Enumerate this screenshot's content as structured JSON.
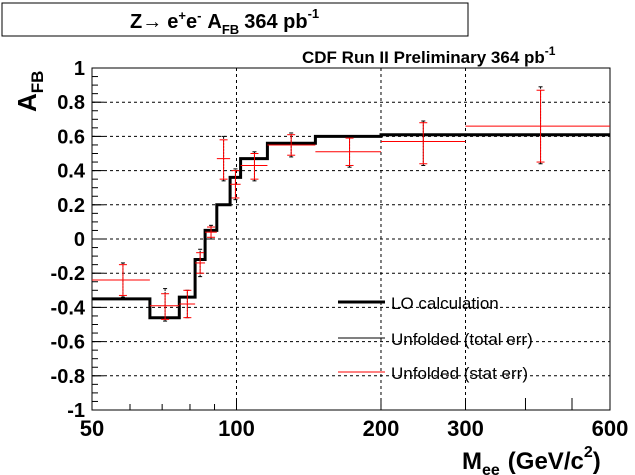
{
  "chart_data": {
    "type": "line",
    "title_box": {
      "text_main": "Z",
      "arrow": "→",
      "electron": "e",
      "plus": "+",
      "minus": "-",
      "afb": "A",
      "fb_sub": "FB",
      "lumi": "364 pb",
      "lumi_exp": "-1"
    },
    "subtitle": {
      "text": "CDF Run II Preliminary 364 pb",
      "exp": "-1"
    },
    "ylabel": {
      "main": "A",
      "sub": "FB"
    },
    "xlabel": {
      "main": "M",
      "sub": "ee",
      "units": "(GeV/c",
      "exp": "2",
      "close": ")"
    },
    "xscale": "log",
    "xlim": [
      50,
      600
    ],
    "ylim": [
      -1,
      1
    ],
    "xticks": [
      {
        "value": 50,
        "label": "50"
      },
      {
        "value": 100,
        "label": "100"
      },
      {
        "value": 200,
        "label": "200"
      },
      {
        "value": 300,
        "label": "300"
      },
      {
        "value": 600,
        "label": "600"
      }
    ],
    "yticks": [
      {
        "value": 1,
        "label": "1"
      },
      {
        "value": 0.8,
        "label": "0.8"
      },
      {
        "value": 0.6,
        "label": "0.6"
      },
      {
        "value": 0.4,
        "label": "0.4"
      },
      {
        "value": 0.2,
        "label": "0.2"
      },
      {
        "value": 0,
        "label": "0"
      },
      {
        "value": -0.2,
        "label": "-0.2"
      },
      {
        "value": -0.4,
        "label": "-0.4"
      },
      {
        "value": -0.6,
        "label": "-0.6"
      },
      {
        "value": -0.8,
        "label": "-0.8"
      },
      {
        "value": -1,
        "label": "-1"
      }
    ],
    "grid": true,
    "lo_calculation": {
      "name": "LO calculation",
      "bins": [
        {
          "lo": 50,
          "hi": 66,
          "y": -0.35
        },
        {
          "lo": 66,
          "hi": 76,
          "y": -0.46
        },
        {
          "lo": 76,
          "hi": 82,
          "y": -0.34
        },
        {
          "lo": 82,
          "hi": 86,
          "y": -0.12
        },
        {
          "lo": 86,
          "hi": 91,
          "y": 0.05
        },
        {
          "lo": 91,
          "hi": 97,
          "y": 0.2
        },
        {
          "lo": 97,
          "hi": 102,
          "y": 0.36
        },
        {
          "lo": 102,
          "hi": 116,
          "y": 0.47
        },
        {
          "lo": 116,
          "hi": 146,
          "y": 0.56
        },
        {
          "lo": 146,
          "hi": 200,
          "y": 0.6
        },
        {
          "lo": 200,
          "hi": 600,
          "y": 0.61
        }
      ]
    },
    "unfolded": [
      {
        "x": 58,
        "y": -0.24,
        "xlo": 50,
        "xhi": 66,
        "stat_lo": -0.33,
        "stat_hi": -0.15,
        "tot_lo": -0.34,
        "tot_hi": -0.14
      },
      {
        "x": 71,
        "y": -0.39,
        "xlo": 66,
        "xhi": 76,
        "stat_lo": -0.47,
        "stat_hi": -0.32,
        "tot_lo": -0.48,
        "tot_hi": -0.29
      },
      {
        "x": 79,
        "y": -0.38,
        "xlo": 76,
        "xhi": 82,
        "stat_lo": -0.46,
        "stat_hi": -0.3,
        "tot_lo": -0.46,
        "tot_hi": -0.3
      },
      {
        "x": 84,
        "y": -0.14,
        "xlo": 82,
        "xhi": 86,
        "stat_lo": -0.2,
        "stat_hi": -0.08,
        "tot_lo": -0.22,
        "tot_hi": -0.06
      },
      {
        "x": 88.5,
        "y": 0.04,
        "xlo": 86,
        "xhi": 91,
        "stat_lo": 0.01,
        "stat_hi": 0.07,
        "tot_lo": 0.0,
        "tot_hi": 0.08
      },
      {
        "x": 94,
        "y": 0.47,
        "xlo": 91,
        "xhi": 97,
        "stat_lo": 0.35,
        "stat_hi": 0.58,
        "tot_lo": 0.34,
        "tot_hi": 0.6
      },
      {
        "x": 99.5,
        "y": 0.32,
        "xlo": 97,
        "xhi": 102,
        "stat_lo": 0.24,
        "stat_hi": 0.4,
        "tot_lo": 0.23,
        "tot_hi": 0.41
      },
      {
        "x": 109,
        "y": 0.43,
        "xlo": 102,
        "xhi": 116,
        "stat_lo": 0.35,
        "stat_hi": 0.5,
        "tot_lo": 0.34,
        "tot_hi": 0.51
      },
      {
        "x": 130,
        "y": 0.55,
        "xlo": 116,
        "xhi": 146,
        "stat_lo": 0.49,
        "stat_hi": 0.61,
        "tot_lo": 0.48,
        "tot_hi": 0.62
      },
      {
        "x": 172,
        "y": 0.51,
        "xlo": 146,
        "xhi": 200,
        "stat_lo": 0.43,
        "stat_hi": 0.59,
        "tot_lo": 0.42,
        "tot_hi": 0.6
      },
      {
        "x": 245,
        "y": 0.57,
        "xlo": 200,
        "xhi": 300,
        "stat_lo": 0.44,
        "stat_hi": 0.68,
        "tot_lo": 0.43,
        "tot_hi": 0.69
      },
      {
        "x": 430,
        "y": 0.66,
        "xlo": 300,
        "xhi": 600,
        "stat_lo": 0.45,
        "stat_hi": 0.87,
        "tot_lo": 0.44,
        "tot_hi": 0.89
      }
    ],
    "legend": {
      "placement": "bottom-right",
      "entries": [
        {
          "label": "LO calculation",
          "style": "thick-black"
        },
        {
          "label": "Unfolded (total err)",
          "style": "thin-black"
        },
        {
          "label": "Unfolded (stat err)",
          "style": "thin-red"
        }
      ]
    },
    "colors": {
      "lo": "#000000",
      "total": "#000000",
      "stat": "#ff0000",
      "grid": "#000000"
    }
  }
}
